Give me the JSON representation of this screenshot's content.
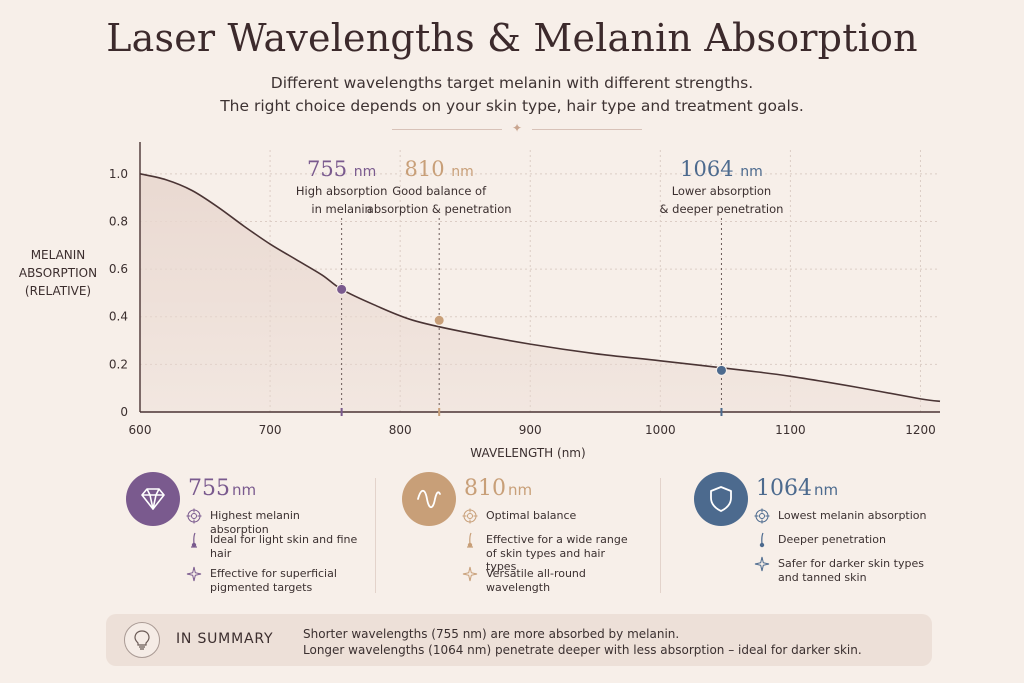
{
  "header": {
    "title": "Laser Wavelengths & Melanin Absorption",
    "subtitle_line1": "Different wavelengths target melanin with different strengths.",
    "subtitle_line2": "The right choice depends on your skin type, hair type and treatment goals."
  },
  "colors": {
    "w755": "#7a5a8e",
    "w810": "#c89f78",
    "w1064": "#4c6a8e",
    "curve": "#4a3434",
    "fill": "#e9d8d0",
    "grid": "#dccdc5"
  },
  "chart_data": {
    "type": "area",
    "title": "Laser Wavelengths & Melanin Absorption",
    "xlabel": "WAVELENGTH (nm)",
    "ylabel_lines": [
      "MELANIN",
      "ABSORPTION",
      "(RELATIVE)"
    ],
    "xlim": [
      600,
      1215
    ],
    "ylim": [
      0,
      1.1
    ],
    "x_ticks": [
      600,
      700,
      800,
      900,
      1000,
      1100,
      1200
    ],
    "y_ticks": [
      0,
      0.2,
      0.4,
      0.6,
      0.8,
      1.0
    ],
    "y_tick_labels": [
      "0",
      "0.2",
      "0.4",
      "0.6",
      "0.8",
      "1.0"
    ],
    "grid": true,
    "series": [
      {
        "x": [
          600,
          620,
          640,
          660,
          680,
          700,
          720,
          740,
          755,
          780,
          810,
          850,
          900,
          950,
          1000,
          1064,
          1100,
          1150,
          1200,
          1215
        ],
        "y": [
          1.0,
          0.975,
          0.93,
          0.86,
          0.78,
          0.705,
          0.64,
          0.575,
          0.515,
          0.45,
          0.385,
          0.335,
          0.285,
          0.245,
          0.215,
          0.175,
          0.15,
          0.105,
          0.055,
          0.045
        ]
      }
    ],
    "markers": [
      {
        "x": 755,
        "y": 0.515,
        "value": "755",
        "unit": "nm",
        "desc_line1": "High absorption",
        "desc_line2": "in melanin",
        "color_key": "w755"
      },
      {
        "x": 830,
        "y": 0.385,
        "value": "810",
        "unit": "nm",
        "desc_line1": "Good balance of",
        "desc_line2": "absorption & penetration",
        "color_key": "w810"
      },
      {
        "x": 1047,
        "y": 0.175,
        "value": "1064",
        "unit": "nm",
        "desc_line1": "Lower absorption",
        "desc_line2": "& deeper penetration",
        "color_key": "w1064"
      }
    ]
  },
  "cards": [
    {
      "value": "755",
      "unit": "nm",
      "icon": "diamond-icon",
      "color": "#7a5a8e",
      "features": [
        {
          "icon": "target-icon",
          "text": "Highest melanin absorption"
        },
        {
          "icon": "hair-icon",
          "text": "Ideal for light skin and fine hair"
        },
        {
          "icon": "sparkle-icon",
          "text": "Effective for superficial pigmented targets"
        }
      ]
    },
    {
      "value": "810",
      "unit": "nm",
      "icon": "wave-icon",
      "color": "#c89f78",
      "features": [
        {
          "icon": "target-icon",
          "text": "Optimal balance"
        },
        {
          "icon": "hair-icon",
          "text": "Effective for a wide range of skin types and hair types"
        },
        {
          "icon": "sparkle-icon",
          "text": "Versatile all-round wavelength"
        }
      ]
    },
    {
      "value": "1064",
      "unit": "nm",
      "icon": "shield-icon",
      "color": "#4c6a8e",
      "features": [
        {
          "icon": "target-icon",
          "text": "Lowest melanin absorption"
        },
        {
          "icon": "hair-icon",
          "text": "Deeper penetration"
        },
        {
          "icon": "sparkle-icon",
          "text": "Safer for darker skin types and tanned skin"
        }
      ]
    }
  ],
  "summary": {
    "heading": "IN SUMMARY",
    "line1": "Shorter wavelengths (755 nm) are more absorbed by melanin.",
    "line2": "Longer wavelengths (1064 nm) penetrate deeper with less absorption – ideal for darker skin."
  }
}
